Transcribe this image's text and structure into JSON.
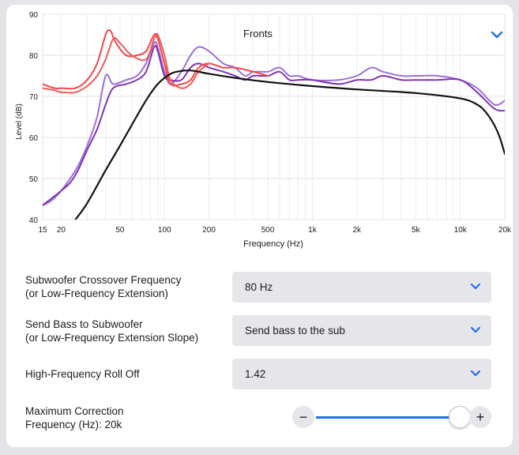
{
  "chart": {
    "title": "Fronts",
    "xlabel": "Frequency (Hz)",
    "ylabel": "Level (dB)",
    "chevron_icon": "chevron-down-icon",
    "accent": "#1e6ff0"
  },
  "chart_data": {
    "type": "line",
    "title": "Fronts",
    "xlabel": "Frequency (Hz)",
    "ylabel": "Level (dB)",
    "xscale": "log",
    "xlim": [
      15,
      20000
    ],
    "ylim": [
      40,
      90
    ],
    "grid": true,
    "x_ticks": [
      15,
      20,
      50,
      100,
      200,
      500,
      1000,
      2000,
      5000,
      10000,
      20000
    ],
    "x_tick_labels": [
      "15",
      "20",
      "50",
      "100",
      "200",
      "500",
      "1k",
      "2k",
      "5k",
      "10k",
      "20k"
    ],
    "y_ticks": [
      40,
      50,
      60,
      70,
      80,
      90
    ],
    "series": [
      {
        "color": "#f04848",
        "x": [
          15,
          18,
          20,
          25,
          30,
          35,
          40,
          43,
          47,
          55,
          65,
          75,
          85,
          90,
          100,
          110,
          130,
          150,
          170,
          200,
          250,
          300,
          400,
          500
        ],
        "y": [
          73,
          72,
          72,
          72,
          74,
          78,
          85,
          86,
          83,
          80,
          80,
          81,
          85,
          84,
          78,
          73,
          73,
          74,
          77,
          78,
          77,
          77,
          76,
          75
        ]
      },
      {
        "color": "#f05a5a",
        "x": [
          15,
          18,
          20,
          25,
          30,
          35,
          40,
          45,
          50,
          60,
          75,
          85,
          90,
          100,
          110,
          130,
          150,
          170,
          200
        ],
        "y": [
          72,
          71.5,
          71,
          71,
          72.5,
          75,
          79,
          84,
          83,
          80,
          79,
          84,
          85,
          80,
          74,
          72,
          73,
          76,
          78
        ]
      },
      {
        "color": "#9b6fd8",
        "x": [
          15,
          17,
          20,
          23,
          26,
          30,
          35,
          40,
          45,
          55,
          65,
          75,
          85,
          90,
          100,
          110,
          130,
          150,
          170,
          200,
          250,
          300,
          350,
          400,
          500,
          600,
          700,
          800,
          1000,
          1500,
          2000,
          2500,
          3000,
          4000,
          5000,
          7000,
          10000,
          13000,
          17000,
          20000
        ],
        "y": [
          43.5,
          44.5,
          47,
          50,
          53,
          58,
          65,
          75,
          73,
          74,
          75,
          78,
          83,
          82,
          76,
          73,
          76,
          80,
          82,
          81,
          78,
          77,
          75,
          76,
          76,
          77,
          75,
          75,
          74,
          74,
          75,
          77,
          76,
          75,
          75,
          75,
          74,
          72,
          68,
          69
        ]
      },
      {
        "color": "#7f33b5",
        "x": [
          15,
          17,
          20,
          23,
          26,
          30,
          35,
          40,
          45,
          55,
          65,
          75,
          85,
          90,
          100,
          110,
          130,
          150,
          170,
          200,
          250,
          300,
          350,
          400,
          500,
          600,
          700,
          800,
          1000,
          1500,
          2000,
          2500,
          3000,
          4000,
          5000,
          7000,
          10000,
          13000,
          17000,
          20000
        ],
        "y": [
          43.5,
          45,
          47,
          49,
          52,
          57,
          62,
          68,
          72,
          73,
          74,
          76,
          82,
          81,
          75,
          74,
          74,
          77,
          78,
          77,
          76,
          75,
          74,
          75,
          75,
          76,
          74,
          74,
          74,
          73,
          74,
          74,
          75,
          74,
          74,
          74,
          74,
          71,
          67,
          66.5
        ]
      },
      {
        "color": "#111111",
        "x": [
          25,
          30,
          40,
          50,
          60,
          75,
          90,
          110,
          130,
          150,
          170,
          200,
          300,
          500,
          1000,
          2000,
          5000,
          10000,
          13000,
          15000,
          17000,
          18500,
          20000
        ],
        "y": [
          40,
          44,
          52,
          58,
          63,
          69,
          73,
          75.5,
          76.2,
          76.3,
          76,
          75.5,
          74.5,
          73.5,
          72.5,
          71.7,
          70.8,
          69.5,
          68,
          66,
          63,
          60,
          56
        ]
      }
    ]
  },
  "settings": {
    "crossover": {
      "label_line1": "Subwoofer Crossover Frequency",
      "label_line2": "(or Low-Frequency Extension)",
      "value": "80 Hz"
    },
    "bass": {
      "label_line1": "Send Bass to Subwoofer",
      "label_line2": "(or Low-Frequency Extension Slope)",
      "value": "Send bass to the sub"
    },
    "rolloff": {
      "label": "High-Frequency Roll Off",
      "value": "1.42"
    },
    "max_correction": {
      "label_line1": "Maximum Correction",
      "label_line2": "Frequency (Hz): 20k",
      "minus": "−",
      "plus": "+",
      "slider_fraction": 1.0
    }
  }
}
